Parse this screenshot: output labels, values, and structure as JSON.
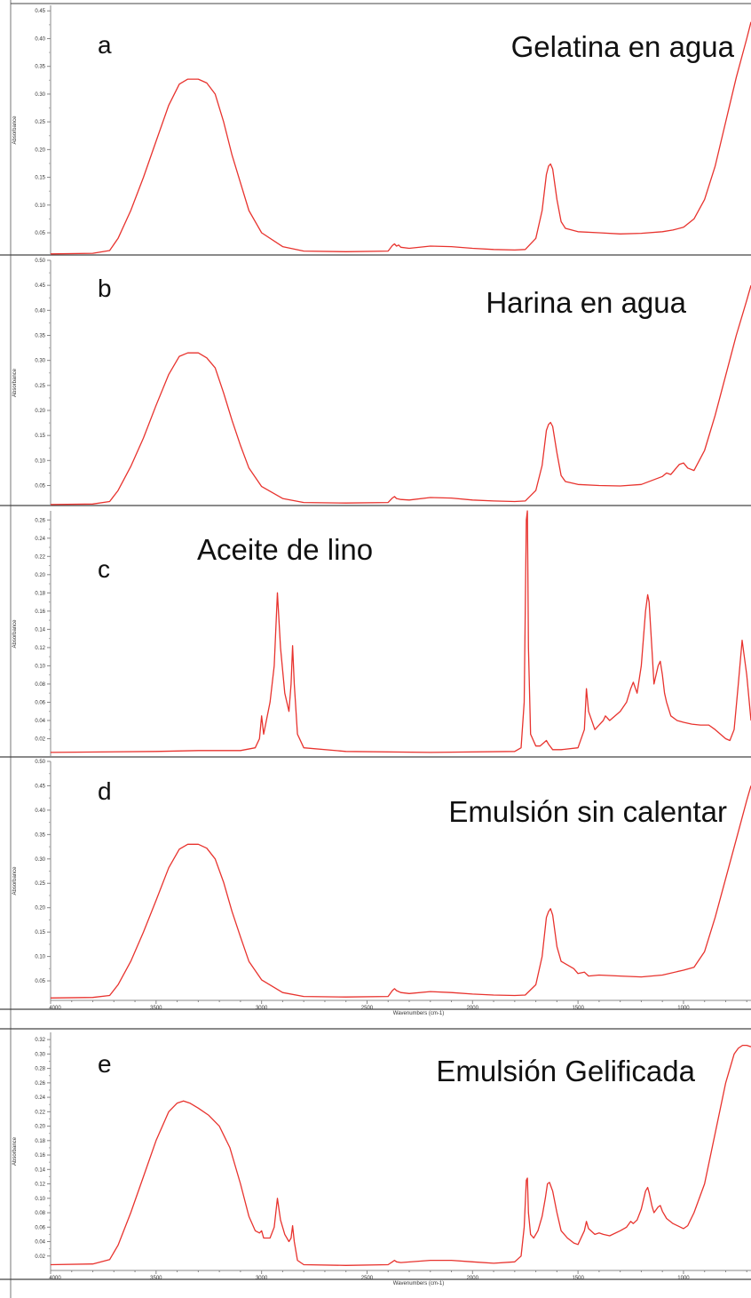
{
  "chart_data": [
    {
      "type": "line",
      "panel_letter": "a",
      "annotation": "Gelatina en agua",
      "ylabel": "Absorbance",
      "xlabel": "",
      "xlim": [
        4000,
        680
      ],
      "ylim": [
        0.01,
        0.46
      ],
      "yticks": [
        0.05,
        0.1,
        0.15,
        0.2,
        0.25,
        0.3,
        0.35,
        0.4,
        0.45
      ],
      "ytick_labels": [
        "0.05",
        "0.10",
        "0.15",
        "0.20",
        "0.25",
        "0.30",
        "0.35",
        "0.40",
        "0.45"
      ],
      "xticks": [],
      "xtick_labels": [],
      "series": [
        {
          "color": "#e8332e",
          "x": [
            4000,
            3800,
            3720,
            3680,
            3620,
            3560,
            3500,
            3440,
            3390,
            3350,
            3300,
            3260,
            3220,
            3180,
            3140,
            3100,
            3060,
            3000,
            2900,
            2800,
            2600,
            2400,
            2380,
            2370,
            2360,
            2350,
            2340,
            2300,
            2200,
            2100,
            2000,
            1900,
            1800,
            1750,
            1700,
            1670,
            1650,
            1640,
            1630,
            1620,
            1600,
            1580,
            1560,
            1500,
            1400,
            1300,
            1200,
            1100,
            1050,
            1000,
            950,
            900,
            850,
            800,
            750,
            700,
            680
          ],
          "y": [
            0.012,
            0.013,
            0.018,
            0.04,
            0.09,
            0.15,
            0.215,
            0.28,
            0.318,
            0.327,
            0.327,
            0.32,
            0.3,
            0.25,
            0.19,
            0.14,
            0.09,
            0.05,
            0.025,
            0.017,
            0.016,
            0.017,
            0.027,
            0.03,
            0.026,
            0.028,
            0.024,
            0.022,
            0.026,
            0.025,
            0.022,
            0.02,
            0.019,
            0.02,
            0.04,
            0.09,
            0.155,
            0.17,
            0.174,
            0.165,
            0.11,
            0.07,
            0.058,
            0.052,
            0.05,
            0.048,
            0.049,
            0.052,
            0.055,
            0.06,
            0.075,
            0.11,
            0.17,
            0.25,
            0.33,
            0.4,
            0.43
          ]
        }
      ]
    },
    {
      "type": "line",
      "panel_letter": "b",
      "annotation": "Harina en agua",
      "ylabel": "Absorbance",
      "xlabel": "",
      "xlim": [
        4000,
        680
      ],
      "ylim": [
        0.01,
        0.5
      ],
      "yticks": [
        0.05,
        0.1,
        0.15,
        0.2,
        0.25,
        0.3,
        0.35,
        0.4,
        0.45,
        0.5
      ],
      "ytick_labels": [
        "0.05",
        "0.10",
        "0.15",
        "0.20",
        "0.25",
        "0.30",
        "0.35",
        "0.40",
        "0.45",
        "0.50"
      ],
      "xticks": [],
      "xtick_labels": [],
      "series": [
        {
          "color": "#e8332e",
          "x": [
            4000,
            3800,
            3720,
            3680,
            3620,
            3560,
            3500,
            3440,
            3390,
            3350,
            3300,
            3260,
            3220,
            3180,
            3140,
            3100,
            3060,
            3000,
            2900,
            2800,
            2600,
            2400,
            2380,
            2370,
            2360,
            2340,
            2300,
            2200,
            2100,
            2000,
            1900,
            1800,
            1750,
            1700,
            1670,
            1650,
            1640,
            1630,
            1620,
            1600,
            1580,
            1560,
            1500,
            1400,
            1300,
            1200,
            1150,
            1100,
            1080,
            1060,
            1040,
            1020,
            1000,
            980,
            950,
            900,
            850,
            800,
            750,
            700,
            680
          ],
          "y": [
            0.012,
            0.013,
            0.018,
            0.04,
            0.088,
            0.145,
            0.21,
            0.272,
            0.308,
            0.315,
            0.315,
            0.305,
            0.285,
            0.235,
            0.18,
            0.13,
            0.085,
            0.048,
            0.024,
            0.016,
            0.015,
            0.016,
            0.025,
            0.028,
            0.024,
            0.022,
            0.021,
            0.026,
            0.025,
            0.021,
            0.019,
            0.018,
            0.019,
            0.04,
            0.09,
            0.16,
            0.172,
            0.176,
            0.168,
            0.115,
            0.07,
            0.058,
            0.052,
            0.05,
            0.049,
            0.052,
            0.06,
            0.068,
            0.075,
            0.072,
            0.082,
            0.092,
            0.095,
            0.085,
            0.08,
            0.12,
            0.19,
            0.27,
            0.35,
            0.42,
            0.45
          ]
        }
      ]
    },
    {
      "type": "line",
      "panel_letter": "c",
      "annotation": "Aceite de lino",
      "ylabel": "Absorbance",
      "xlabel": "",
      "xlim": [
        4000,
        680
      ],
      "ylim": [
        0.0,
        0.27
      ],
      "yticks": [
        0.02,
        0.04,
        0.06,
        0.08,
        0.1,
        0.12,
        0.14,
        0.16,
        0.18,
        0.2,
        0.22,
        0.24,
        0.26
      ],
      "ytick_labels": [
        "0.02",
        "0.04",
        "0.06",
        "0.08",
        "0.10",
        "0.12",
        "0.14",
        "0.16",
        "0.18",
        "0.20",
        "0.22",
        "0.24",
        "0.26"
      ],
      "xticks": [],
      "xtick_labels": [],
      "series": [
        {
          "color": "#e8332e",
          "x": [
            4000,
            3500,
            3300,
            3100,
            3030,
            3010,
            3000,
            2990,
            2960,
            2940,
            2925,
            2910,
            2890,
            2870,
            2860,
            2853,
            2845,
            2830,
            2800,
            2600,
            2200,
            1800,
            1770,
            1755,
            1745,
            1740,
            1735,
            1725,
            1700,
            1680,
            1660,
            1650,
            1640,
            1620,
            1580,
            1500,
            1470,
            1460,
            1450,
            1420,
            1400,
            1380,
            1370,
            1350,
            1300,
            1270,
            1250,
            1238,
            1220,
            1200,
            1180,
            1170,
            1163,
            1150,
            1140,
            1120,
            1110,
            1100,
            1090,
            1080,
            1060,
            1030,
            1000,
            960,
            920,
            880,
            850,
            820,
            800,
            780,
            760,
            740,
            722,
            700,
            680
          ],
          "y": [
            0.005,
            0.006,
            0.007,
            0.007,
            0.01,
            0.02,
            0.045,
            0.025,
            0.06,
            0.1,
            0.18,
            0.12,
            0.07,
            0.05,
            0.08,
            0.122,
            0.08,
            0.025,
            0.01,
            0.006,
            0.005,
            0.006,
            0.01,
            0.06,
            0.26,
            0.27,
            0.12,
            0.025,
            0.012,
            0.012,
            0.016,
            0.018,
            0.014,
            0.008,
            0.008,
            0.01,
            0.03,
            0.075,
            0.05,
            0.03,
            0.035,
            0.04,
            0.045,
            0.04,
            0.05,
            0.06,
            0.075,
            0.082,
            0.07,
            0.1,
            0.16,
            0.178,
            0.17,
            0.12,
            0.08,
            0.1,
            0.105,
            0.09,
            0.07,
            0.06,
            0.045,
            0.04,
            0.038,
            0.036,
            0.035,
            0.035,
            0.03,
            0.024,
            0.02,
            0.018,
            0.03,
            0.08,
            0.128,
            0.09,
            0.04
          ]
        }
      ]
    },
    {
      "type": "line",
      "panel_letter": "d",
      "annotation": "Emulsión sin calentar",
      "ylabel": "Absorbance",
      "xlabel": "Wavenumbers (cm-1)",
      "xlim": [
        4000,
        680
      ],
      "ylim": [
        0.01,
        0.5
      ],
      "yticks": [
        0.05,
        0.1,
        0.15,
        0.2,
        0.25,
        0.3,
        0.35,
        0.4,
        0.45,
        0.5
      ],
      "ytick_labels": [
        "0.05",
        "0.10",
        "0.15",
        "0.20",
        "0.25",
        "0.30",
        "0.35",
        "0.40",
        "0.45",
        "0.50"
      ],
      "xticks": [
        4000,
        3500,
        3000,
        2500,
        2000,
        1500,
        1000
      ],
      "xtick_labels": [
        "4000",
        "3500",
        "3000",
        "2500",
        "2000",
        "1500",
        "1000"
      ],
      "series": [
        {
          "color": "#e8332e",
          "x": [
            4000,
            3800,
            3720,
            3680,
            3620,
            3560,
            3500,
            3440,
            3390,
            3350,
            3300,
            3260,
            3220,
            3180,
            3140,
            3100,
            3060,
            3000,
            2900,
            2800,
            2600,
            2400,
            2380,
            2370,
            2360,
            2340,
            2300,
            2200,
            2100,
            2000,
            1900,
            1800,
            1750,
            1700,
            1670,
            1650,
            1640,
            1630,
            1620,
            1600,
            1580,
            1560,
            1520,
            1500,
            1470,
            1450,
            1400,
            1300,
            1200,
            1100,
            1000,
            950,
            900,
            850,
            800,
            750,
            700,
            680
          ],
          "y": [
            0.015,
            0.016,
            0.02,
            0.042,
            0.09,
            0.15,
            0.215,
            0.282,
            0.32,
            0.33,
            0.33,
            0.322,
            0.3,
            0.252,
            0.192,
            0.14,
            0.09,
            0.052,
            0.026,
            0.018,
            0.017,
            0.018,
            0.03,
            0.034,
            0.03,
            0.026,
            0.024,
            0.028,
            0.026,
            0.023,
            0.021,
            0.02,
            0.021,
            0.042,
            0.1,
            0.18,
            0.192,
            0.198,
            0.185,
            0.12,
            0.09,
            0.085,
            0.075,
            0.065,
            0.068,
            0.06,
            0.062,
            0.06,
            0.058,
            0.062,
            0.072,
            0.078,
            0.11,
            0.18,
            0.26,
            0.34,
            0.42,
            0.45
          ]
        }
      ]
    },
    {
      "type": "line",
      "panel_letter": "e",
      "annotation": "Emulsión Gelificada",
      "ylabel": "Absorbance",
      "xlabel": "Wavenumbers (cm-1)",
      "xlim": [
        4000,
        680
      ],
      "ylim": [
        0.0,
        0.33
      ],
      "yticks": [
        0.02,
        0.04,
        0.06,
        0.08,
        0.1,
        0.12,
        0.14,
        0.16,
        0.18,
        0.2,
        0.22,
        0.24,
        0.26,
        0.28,
        0.3,
        0.32
      ],
      "ytick_labels": [
        "0.02",
        "0.04",
        "0.06",
        "0.08",
        "0.10",
        "0.12",
        "0.14",
        "0.16",
        "0.18",
        "0.20",
        "0.22",
        "0.24",
        "0.26",
        "0.28",
        "0.30",
        "0.32"
      ],
      "xticks": [
        4000,
        3500,
        3000,
        2500,
        2000,
        1500,
        1000
      ],
      "xtick_labels": [
        "4000",
        "3500",
        "3000",
        "2500",
        "2000",
        "1500",
        "1000"
      ],
      "series": [
        {
          "color": "#e8332e",
          "x": [
            4000,
            3800,
            3720,
            3680,
            3620,
            3560,
            3500,
            3440,
            3400,
            3370,
            3340,
            3300,
            3250,
            3200,
            3150,
            3100,
            3060,
            3030,
            3010,
            3000,
            2990,
            2960,
            2940,
            2925,
            2910,
            2890,
            2870,
            2860,
            2853,
            2845,
            2830,
            2800,
            2600,
            2400,
            2380,
            2370,
            2360,
            2340,
            2200,
            2100,
            2000,
            1900,
            1800,
            1770,
            1755,
            1745,
            1740,
            1735,
            1725,
            1710,
            1690,
            1670,
            1655,
            1645,
            1635,
            1620,
            1600,
            1580,
            1550,
            1520,
            1500,
            1470,
            1460,
            1450,
            1420,
            1400,
            1380,
            1350,
            1300,
            1270,
            1250,
            1238,
            1220,
            1200,
            1180,
            1170,
            1163,
            1150,
            1140,
            1120,
            1110,
            1100,
            1080,
            1050,
            1000,
            980,
            950,
            900,
            850,
            800,
            760,
            740,
            720,
            700,
            680
          ],
          "y": [
            0.008,
            0.009,
            0.015,
            0.035,
            0.08,
            0.13,
            0.18,
            0.22,
            0.232,
            0.235,
            0.232,
            0.225,
            0.215,
            0.2,
            0.17,
            0.12,
            0.075,
            0.055,
            0.052,
            0.055,
            0.045,
            0.045,
            0.06,
            0.1,
            0.07,
            0.05,
            0.04,
            0.045,
            0.062,
            0.04,
            0.014,
            0.008,
            0.007,
            0.008,
            0.012,
            0.014,
            0.012,
            0.011,
            0.014,
            0.014,
            0.012,
            0.01,
            0.012,
            0.02,
            0.06,
            0.125,
            0.128,
            0.08,
            0.05,
            0.045,
            0.055,
            0.075,
            0.1,
            0.12,
            0.122,
            0.11,
            0.08,
            0.055,
            0.045,
            0.038,
            0.036,
            0.055,
            0.068,
            0.058,
            0.05,
            0.052,
            0.05,
            0.048,
            0.055,
            0.06,
            0.068,
            0.065,
            0.07,
            0.085,
            0.11,
            0.115,
            0.108,
            0.09,
            0.08,
            0.088,
            0.09,
            0.082,
            0.072,
            0.065,
            0.058,
            0.062,
            0.08,
            0.12,
            0.19,
            0.26,
            0.3,
            0.308,
            0.312,
            0.312,
            0.31
          ]
        }
      ]
    }
  ]
}
